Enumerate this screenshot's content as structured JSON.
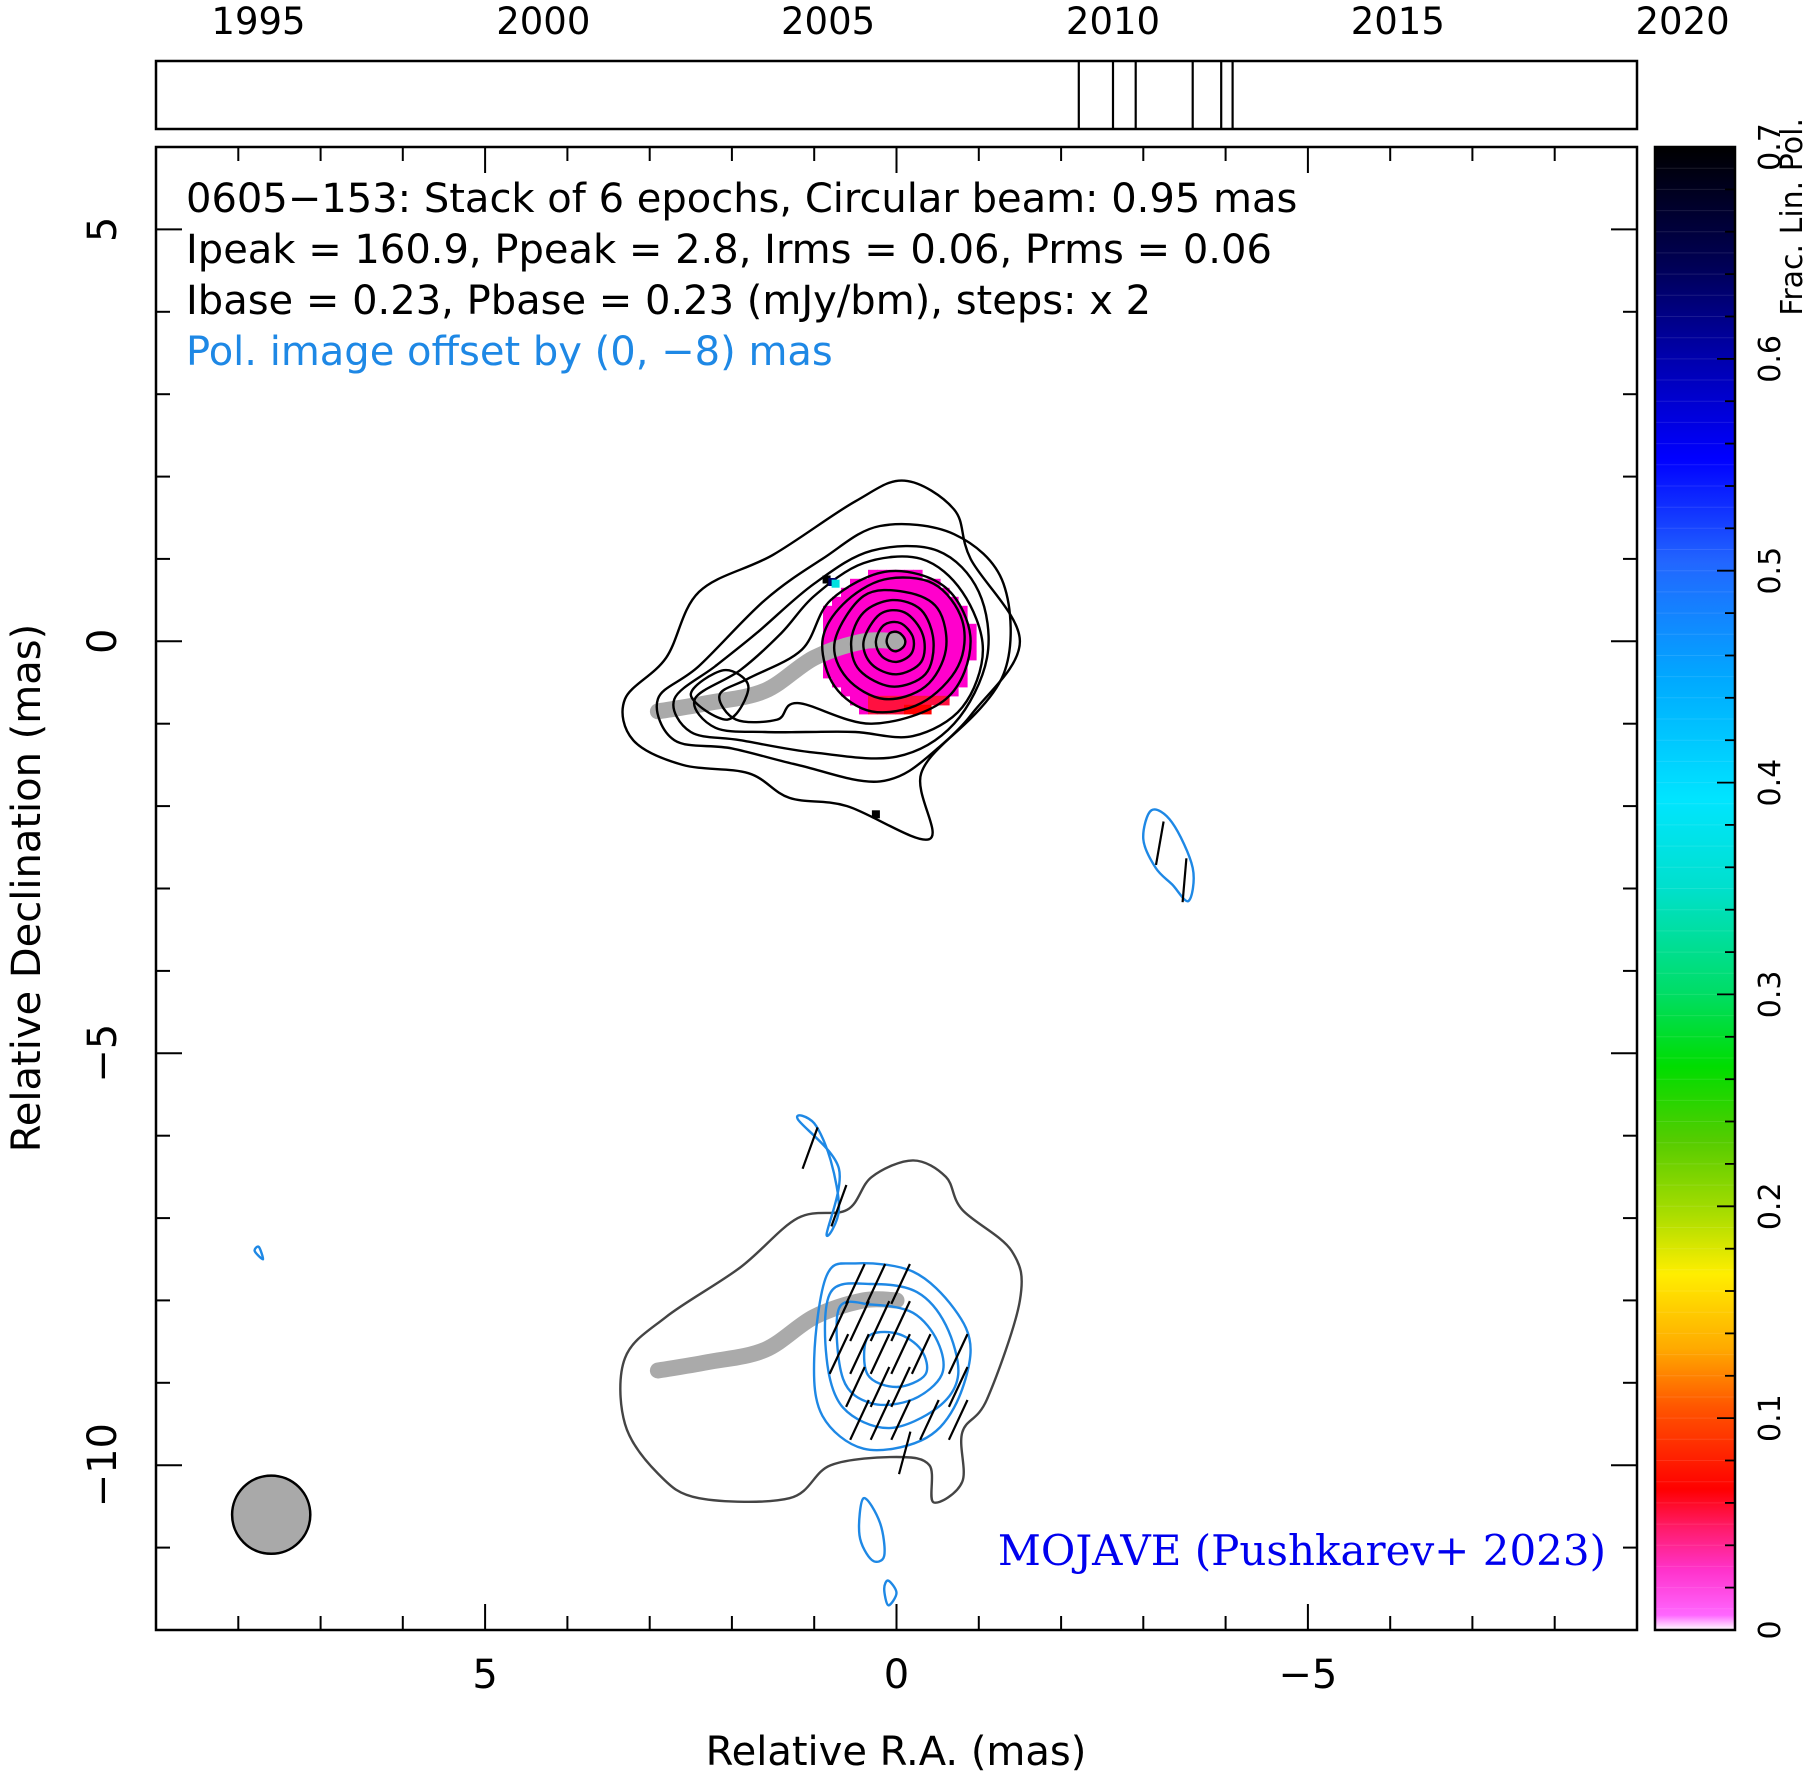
{
  "chart_data": {
    "type": "contour",
    "annotations": [
      "0605−153: Stack of 6 epochs, Circular beam: 0.95 mas",
      "Ipeak = 160.9, Ppeak = 2.8, Irms = 0.06, Prms = 0.06",
      "Ibase = 0.23, Pbase = 0.23 (mJy/bm), steps: x 2"
    ],
    "offset_note": "Pol. image offset by (0, −8) mas",
    "credit": "MOJAVE (Pushkarev+ 2023)",
    "xlabel": "Relative R.A. (mas)",
    "ylabel": "Relative Declination (mas)",
    "xlim": [
      9,
      -9
    ],
    "ylim": [
      -12,
      6
    ],
    "x_ticks": [
      {
        "value": 5,
        "label": "5"
      },
      {
        "value": 0,
        "label": "0"
      },
      {
        "value": -5,
        "label": "−5"
      }
    ],
    "y_ticks": [
      {
        "value": 5,
        "label": "5"
      },
      {
        "value": 0,
        "label": "0"
      },
      {
        "value": -5,
        "label": "−5"
      },
      {
        "value": -10,
        "label": "−10"
      }
    ],
    "timeline": {
      "range": [
        1993.2,
        2019.2
      ],
      "ticks": [
        {
          "value": 1995,
          "label": "1995"
        },
        {
          "value": 2000,
          "label": "2000"
        },
        {
          "value": 2005,
          "label": "2005"
        },
        {
          "value": 2010,
          "label": "2010"
        },
        {
          "value": 2015,
          "label": "2015"
        },
        {
          "value": 2020,
          "label": "2020"
        }
      ],
      "epochs": [
        2009.4,
        2010.0,
        2010.4,
        2011.4,
        2011.9,
        2012.1
      ]
    },
    "colorbar": {
      "label": "Frac. Lin. Pol.",
      "range": [
        0,
        0.7
      ],
      "ticks": [
        {
          "value": 0,
          "label": "0"
        },
        {
          "value": 0.1,
          "label": "0.1"
        },
        {
          "value": 0.2,
          "label": "0.2"
        },
        {
          "value": 0.3,
          "label": "0.3"
        },
        {
          "value": 0.4,
          "label": "0.4"
        },
        {
          "value": 0.5,
          "label": "0.5"
        },
        {
          "value": 0.6,
          "label": "0.6"
        },
        {
          "value": 0.7,
          "label": "0.7"
        }
      ]
    },
    "beam": {
      "x": 7.6,
      "y": -10.6,
      "diameter_mas": 0.95
    },
    "core_position": [
      0,
      0
    ],
    "ridge_line": [
      [
        2.9,
        -0.85
      ],
      [
        2.3,
        -0.75
      ],
      [
        1.6,
        -0.6
      ],
      [
        1.0,
        -0.2
      ],
      [
        0.4,
        0.0
      ],
      [
        0.0,
        0.0
      ]
    ],
    "total_intensity_contours": [
      [
        [
          2.8,
          -0.2
        ],
        [
          3.3,
          -0.7
        ],
        [
          3.2,
          -1.2
        ],
        [
          2.6,
          -1.5
        ],
        [
          1.8,
          -1.6
        ],
        [
          1.3,
          -1.9
        ],
        [
          0.6,
          -2.0
        ],
        [
          -0.4,
          -2.4
        ],
        [
          -0.3,
          -1.6
        ],
        [
          -0.9,
          -0.9
        ],
        [
          -1.5,
          0.0
        ],
        [
          -0.9,
          1.0
        ],
        [
          -0.7,
          1.6
        ],
        [
          -0.1,
          1.95
        ],
        [
          0.5,
          1.7
        ],
        [
          1.5,
          1.05
        ],
        [
          2.4,
          0.6
        ]
      ],
      [
        [
          2.4,
          -0.3
        ],
        [
          2.9,
          -0.7
        ],
        [
          2.7,
          -1.2
        ],
        [
          2.0,
          -1.3
        ],
        [
          1.2,
          -1.5
        ],
        [
          0.2,
          -1.7
        ],
        [
          -0.5,
          -1.3
        ],
        [
          -1.3,
          -0.4
        ],
        [
          -1.3,
          0.7
        ],
        [
          -0.7,
          1.3
        ],
        [
          0.2,
          1.4
        ],
        [
          0.9,
          1.0
        ],
        [
          1.6,
          0.5
        ]
      ],
      [
        [
          2.2,
          -0.3
        ],
        [
          2.7,
          -0.7
        ],
        [
          2.5,
          -1.1
        ],
        [
          1.9,
          -1.2
        ],
        [
          1.0,
          -1.35
        ],
        [
          0.0,
          -1.4
        ],
        [
          -0.7,
          -1.0
        ],
        [
          -1.1,
          -0.2
        ],
        [
          -1.0,
          0.6
        ],
        [
          -0.5,
          1.1
        ],
        [
          0.3,
          1.1
        ],
        [
          1.0,
          0.7
        ],
        [
          1.7,
          0.1
        ]
      ],
      [
        [
          1.9,
          -0.35
        ],
        [
          2.45,
          -0.7
        ],
        [
          2.2,
          -1.05
        ],
        [
          1.6,
          -1.1
        ],
        [
          1.1,
          -1.1
        ],
        [
          0.5,
          -1.1
        ],
        [
          -0.2,
          -1.15
        ],
        [
          -0.8,
          -0.8
        ],
        [
          -1.05,
          -0.1
        ],
        [
          -0.8,
          0.6
        ],
        [
          -0.3,
          1.0
        ],
        [
          0.4,
          0.95
        ],
        [
          1.0,
          0.55
        ],
        [
          1.4,
          0.1
        ]
      ],
      [
        [
          1.8,
          -0.45
        ],
        [
          2.15,
          -0.65
        ],
        [
          1.95,
          -0.95
        ],
        [
          1.45,
          -0.95
        ],
        [
          1.2,
          -0.75
        ],
        [
          0.3,
          -1.0
        ],
        [
          -0.6,
          -0.7
        ],
        [
          -0.9,
          0.0
        ],
        [
          -0.6,
          0.65
        ],
        [
          0.1,
          0.85
        ],
        [
          0.8,
          0.5
        ],
        [
          1.15,
          -0.1
        ]
      ],
      [
        [
          2.5,
          -0.65
        ],
        [
          2.1,
          -0.35
        ],
        [
          1.8,
          -0.55
        ],
        [
          2.05,
          -0.95
        ]
      ],
      [
        [
          0.9,
          0.0
        ],
        [
          0.75,
          -0.55
        ],
        [
          0.3,
          -0.85
        ],
        [
          -0.3,
          -0.75
        ],
        [
          -0.75,
          -0.3
        ],
        [
          -0.8,
          0.25
        ],
        [
          -0.45,
          0.7
        ],
        [
          0.15,
          0.75
        ],
        [
          0.65,
          0.45
        ]
      ],
      [
        [
          0.75,
          0.0
        ],
        [
          0.6,
          -0.45
        ],
        [
          0.15,
          -0.7
        ],
        [
          -0.35,
          -0.55
        ],
        [
          -0.6,
          -0.1
        ],
        [
          -0.5,
          0.4
        ],
        [
          -0.1,
          0.6
        ],
        [
          0.4,
          0.55
        ]
      ],
      [
        [
          0.55,
          0.0
        ],
        [
          0.45,
          -0.35
        ],
        [
          0.05,
          -0.55
        ],
        [
          -0.35,
          -0.4
        ],
        [
          -0.45,
          0.0
        ],
        [
          -0.3,
          0.38
        ],
        [
          0.05,
          0.5
        ],
        [
          0.4,
          0.35
        ]
      ],
      [
        [
          0.4,
          0.0
        ],
        [
          0.3,
          -0.28
        ],
        [
          0.0,
          -0.4
        ],
        [
          -0.3,
          -0.25
        ],
        [
          -0.32,
          0.08
        ],
        [
          -0.1,
          0.35
        ],
        [
          0.2,
          0.33
        ]
      ],
      [
        [
          0.25,
          0.0
        ],
        [
          0.18,
          -0.18
        ],
        [
          0.0,
          -0.25
        ],
        [
          -0.18,
          -0.15
        ],
        [
          -0.2,
          0.05
        ],
        [
          -0.05,
          0.22
        ],
        [
          0.15,
          0.2
        ]
      ],
      [
        [
          0.12,
          0.0
        ],
        [
          0.08,
          -0.09
        ],
        [
          0.0,
          -0.12
        ],
        [
          -0.09,
          -0.06
        ],
        [
          -0.1,
          0.03
        ],
        [
          -0.02,
          0.11
        ],
        [
          0.08,
          0.1
        ]
      ]
    ],
    "offset_intensity_contour": [
      [
        2.8,
        -8.2
      ],
      [
        3.3,
        -8.7
      ],
      [
        3.3,
        -9.5
      ],
      [
        2.9,
        -10.1
      ],
      [
        2.4,
        -10.4
      ],
      [
        1.3,
        -10.4
      ],
      [
        0.8,
        -10.0
      ],
      [
        0.0,
        -9.9
      ],
      [
        -0.4,
        -10.0
      ],
      [
        -0.45,
        -10.45
      ],
      [
        -0.8,
        -10.2
      ],
      [
        -0.8,
        -9.6
      ],
      [
        -1.1,
        -9.2
      ],
      [
        -1.5,
        -8.0
      ],
      [
        -1.4,
        -7.4
      ],
      [
        -0.8,
        -6.9
      ],
      [
        -0.6,
        -6.5
      ],
      [
        -0.2,
        -6.3
      ],
      [
        0.3,
        -6.5
      ],
      [
        0.6,
        -6.9
      ],
      [
        1.2,
        -7.0
      ],
      [
        1.9,
        -7.6
      ]
    ],
    "polarized_contours": [
      [
        [
          0.85,
          -7.7
        ],
        [
          0.5,
          -7.55
        ],
        [
          -0.2,
          -7.65
        ],
        [
          -0.7,
          -8.1
        ],
        [
          -0.9,
          -8.6
        ],
        [
          -0.7,
          -9.3
        ],
        [
          -0.3,
          -9.7
        ],
        [
          0.4,
          -9.8
        ],
        [
          0.9,
          -9.4
        ],
        [
          1.0,
          -8.7
        ]
      ],
      [
        [
          0.8,
          -7.9
        ],
        [
          0.3,
          -7.8
        ],
        [
          -0.25,
          -7.9
        ],
        [
          -0.6,
          -8.3
        ],
        [
          -0.75,
          -8.9
        ],
        [
          -0.5,
          -9.3
        ],
        [
          0.1,
          -9.55
        ],
        [
          0.65,
          -9.3
        ],
        [
          0.85,
          -8.7
        ]
      ],
      [
        [
          0.7,
          -8.1
        ],
        [
          0.3,
          -8.05
        ],
        [
          -0.2,
          -8.15
        ],
        [
          -0.5,
          -8.5
        ],
        [
          -0.55,
          -8.9
        ],
        [
          -0.2,
          -9.2
        ],
        [
          0.3,
          -9.25
        ],
        [
          0.65,
          -8.95
        ]
      ],
      [
        [
          0.35,
          -8.45
        ],
        [
          0.0,
          -8.4
        ],
        [
          -0.3,
          -8.6
        ],
        [
          -0.35,
          -8.9
        ],
        [
          0.0,
          -9.05
        ],
        [
          0.35,
          -8.9
        ]
      ],
      [
        [
          1.2,
          -5.8
        ],
        [
          1.0,
          -5.85
        ],
        [
          0.8,
          -6.3
        ],
        [
          0.7,
          -6.9
        ],
        [
          0.85,
          -7.2
        ],
        [
          0.7,
          -6.4
        ]
      ],
      [
        [
          -3.1,
          -2.05
        ],
        [
          -3.35,
          -2.2
        ],
        [
          -3.6,
          -2.75
        ],
        [
          -3.55,
          -3.15
        ],
        [
          -3.35,
          -2.95
        ],
        [
          -3.15,
          -2.75
        ],
        [
          -3.0,
          -2.4
        ]
      ],
      [
        [
          0.4,
          -10.4
        ],
        [
          0.2,
          -10.7
        ],
        [
          0.15,
          -11.1
        ],
        [
          0.3,
          -11.15
        ],
        [
          0.45,
          -10.85
        ]
      ],
      [
        [
          0.1,
          -11.4
        ],
        [
          0.0,
          -11.55
        ],
        [
          0.1,
          -11.7
        ],
        [
          0.15,
          -11.5
        ]
      ],
      [
        [
          7.75,
          -7.35
        ],
        [
          7.7,
          -7.5
        ],
        [
          7.8,
          -7.4
        ]
      ]
    ],
    "evpa_vectors": [
      [
        0.5,
        -7.8,
        25
      ],
      [
        0.25,
        -7.8,
        25
      ],
      [
        -0.05,
        -7.8,
        25
      ],
      [
        0.7,
        -8.25,
        25
      ],
      [
        0.45,
        -8.25,
        25
      ],
      [
        0.2,
        -8.25,
        25
      ],
      [
        -0.05,
        -8.25,
        25
      ],
      [
        0.7,
        -8.65,
        25
      ],
      [
        0.45,
        -8.65,
        25
      ],
      [
        0.2,
        -8.65,
        25
      ],
      [
        -0.05,
        -8.65,
        25
      ],
      [
        -0.3,
        -8.65,
        25
      ],
      [
        -0.75,
        -8.65,
        25
      ],
      [
        0.5,
        -9.05,
        25
      ],
      [
        0.2,
        -9.05,
        25
      ],
      [
        -0.05,
        -9.05,
        25
      ],
      [
        -0.75,
        -9.05,
        25
      ],
      [
        0.45,
        -9.45,
        25
      ],
      [
        0.2,
        -9.45,
        25
      ],
      [
        -0.05,
        -9.45,
        25
      ],
      [
        -0.4,
        -9.45,
        25
      ],
      [
        -0.75,
        -9.45,
        25
      ],
      [
        -0.1,
        -9.85,
        15
      ],
      [
        1.05,
        -6.15,
        20
      ],
      [
        0.7,
        -6.85,
        20
      ],
      [
        -3.2,
        -2.45,
        10
      ],
      [
        -3.5,
        -2.9,
        5
      ]
    ],
    "frac_pol_pixels": [
      {
        "x": 0.85,
        "y": 0.75,
        "value": 0.68
      },
      {
        "x": 0.78,
        "y": 0.72,
        "value": 0.62
      },
      {
        "x": 0.74,
        "y": 0.7,
        "value": 0.38
      },
      {
        "x": 0.25,
        "y": -2.1,
        "value": 0.68
      }
    ]
  }
}
